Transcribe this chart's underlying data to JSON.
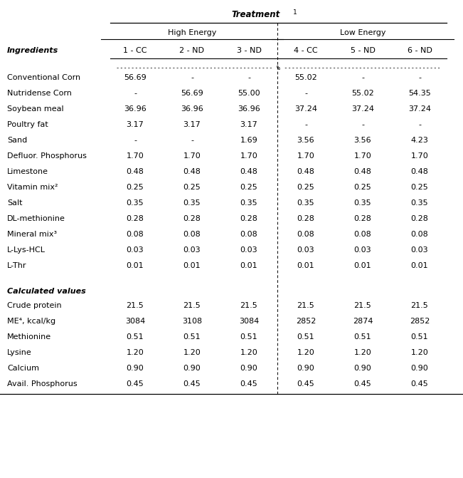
{
  "title": "Treatment",
  "title_superscript": "1",
  "col_header_row2": [
    "Ingredients",
    "1 - CC",
    "2 - ND",
    "3 - ND",
    "4 - CC",
    "5 - ND",
    "6 - ND"
  ],
  "ingredients_rows": [
    [
      "Conventional Corn",
      "56.69",
      "-",
      "-",
      "55.02",
      "-",
      "-"
    ],
    [
      "Nutridense Corn",
      "-",
      "56.69",
      "55.00",
      "-",
      "55.02",
      "54.35"
    ],
    [
      "Soybean meal",
      "36.96",
      "36.96",
      "36.96",
      "37.24",
      "37.24",
      "37.24"
    ],
    [
      "Poultry fat",
      "3.17",
      "3.17",
      "3.17",
      "-",
      "-",
      "-"
    ],
    [
      "Sand",
      "-",
      "-",
      "1.69",
      "3.56",
      "3.56",
      "4.23"
    ],
    [
      "Defluor. Phosphorus",
      "1.70",
      "1.70",
      "1.70",
      "1.70",
      "1.70",
      "1.70"
    ],
    [
      "Limestone",
      "0.48",
      "0.48",
      "0.48",
      "0.48",
      "0.48",
      "0.48"
    ],
    [
      "Vitamin mix²",
      "0.25",
      "0.25",
      "0.25",
      "0.25",
      "0.25",
      "0.25"
    ],
    [
      "Salt",
      "0.35",
      "0.35",
      "0.35",
      "0.35",
      "0.35",
      "0.35"
    ],
    [
      "DL-methionine",
      "0.28",
      "0.28",
      "0.28",
      "0.28",
      "0.28",
      "0.28"
    ],
    [
      "Mineral mix³",
      "0.08",
      "0.08",
      "0.08",
      "0.08",
      "0.08",
      "0.08"
    ],
    [
      "L-Lys-HCL",
      "0.03",
      "0.03",
      "0.03",
      "0.03",
      "0.03",
      "0.03"
    ],
    [
      "L-Thr",
      "0.01",
      "0.01",
      "0.01",
      "0.01",
      "0.01",
      "0.01"
    ]
  ],
  "calc_section_header": "Calculated values",
  "calc_rows": [
    [
      "Crude protein",
      "21.5",
      "21.5",
      "21.5",
      "21.5",
      "21.5",
      "21.5"
    ],
    [
      "ME⁴, kcal/kg",
      "3084",
      "3108",
      "3084",
      "2852",
      "2874",
      "2852"
    ],
    [
      "Methionine",
      "0.51",
      "0.51",
      "0.51",
      "0.51",
      "0.51",
      "0.51"
    ],
    [
      "Lysine",
      "1.20",
      "1.20",
      "1.20",
      "1.20",
      "1.20",
      "1.20"
    ],
    [
      "Calcium",
      "0.90",
      "0.90",
      "0.90",
      "0.90",
      "0.90",
      "0.90"
    ],
    [
      "Avail. Phosphorus",
      "0.45",
      "0.45",
      "0.45",
      "0.45",
      "0.45",
      "0.45"
    ]
  ],
  "fig_width": 6.51,
  "fig_height": 6.71,
  "dpi": 100
}
